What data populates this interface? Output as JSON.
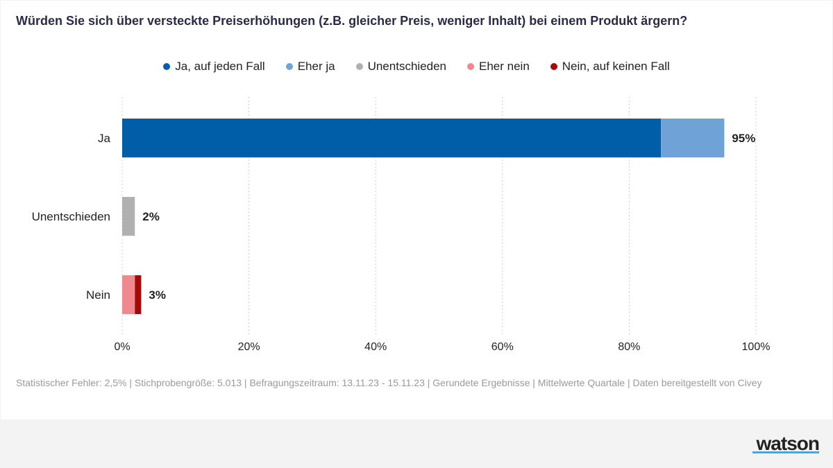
{
  "title": "Würden Sie sich über versteckte Preiserhöhungen (z.B. gleicher Preis, weniger Inhalt) bei einem Produkt ärgern?",
  "footnote": "Statistischer Fehler: 2,5% | Stichprobengröße: 5.013 | Befragungszeitraum: 13.11.23 - 15.11.23 | Gerundete Ergebnisse | Mittelwerte Quartale | Daten bereitgestellt von Civey",
  "logo": "watson",
  "colors": {
    "ja_auf_jeden_fall": "#005ea8",
    "eher_ja": "#6fa3d8",
    "unentschieden": "#b0b0b0",
    "eher_nein": "#f08890",
    "nein_auf_keinen_fall": "#a50a0a",
    "brand_accent": "#2bb3e8"
  },
  "chart_data": {
    "type": "bar",
    "orientation": "horizontal",
    "stacked": true,
    "categories": [
      "Ja",
      "Unentschieden",
      "Nein"
    ],
    "series": [
      {
        "name": "Ja, auf jeden Fall",
        "color": "#005ea8",
        "values": [
          85,
          0,
          0
        ]
      },
      {
        "name": "Eher ja",
        "color": "#6fa3d8",
        "values": [
          10,
          0,
          0
        ]
      },
      {
        "name": "Unentschieden",
        "color": "#b0b0b0",
        "values": [
          0,
          2,
          0
        ]
      },
      {
        "name": "Eher nein",
        "color": "#f08890",
        "values": [
          0,
          0,
          2
        ]
      },
      {
        "name": "Nein, auf keinen Fall",
        "color": "#a50a0a",
        "values": [
          0,
          0,
          1
        ]
      }
    ],
    "totals_labels": [
      "95%",
      "2%",
      "3%"
    ],
    "xlim": [
      0,
      100
    ],
    "xticks": [
      0,
      20,
      40,
      60,
      80,
      100
    ],
    "xtick_labels": [
      "0%",
      "20%",
      "40%",
      "60%",
      "80%",
      "100%"
    ],
    "grid": "vertical dotted",
    "legend_position": "top-center"
  }
}
